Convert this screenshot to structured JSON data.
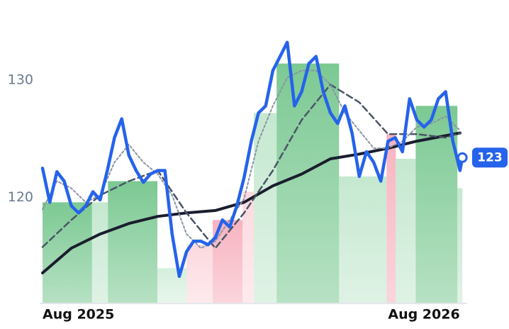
{
  "chart_data": {
    "type": "line",
    "xticks": [
      {
        "value": 0,
        "label": "Aug 2025"
      },
      {
        "value": 12,
        "label": "Aug 2026"
      }
    ],
    "xlim": [
      0,
      14.65
    ],
    "ylim": [
      111,
      136.8
    ],
    "yticks": [
      120,
      130
    ],
    "bands": {
      "edges": [
        0,
        1.72,
        2.27,
        3.99,
        5.0,
        5.91,
        6.95,
        7.34,
        8.13,
        10.3,
        11.95,
        12.27,
        12.96,
        14.41,
        14.58
      ],
      "values": [
        119.6,
        119.6,
        121.4,
        114.0,
        116.0,
        118.1,
        120.5,
        127.2,
        131.4,
        121.8,
        125.4,
        123.3,
        127.8,
        120.8
      ],
      "colors": [
        "#7cc993",
        "#c5e8d0",
        "#7cc993",
        "#d5efdd",
        "#fcd9df",
        "#f7b3c0",
        "#fcd9df",
        "#c5e8d0",
        "#7cc993",
        "#c5e8d0",
        "#f7b3c0",
        "#c5e8d0",
        "#7cc993",
        "#c5e8d0"
      ]
    },
    "series": [
      {
        "color": "#1a1d2e",
        "style": "solid",
        "width": 4,
        "x": [
          0,
          1,
          2,
          3,
          4,
          5,
          6,
          7,
          8,
          9,
          10,
          11,
          12,
          13,
          14.5
        ],
        "values": [
          113.6,
          115.7,
          116.9,
          117.8,
          118.4,
          118.7,
          118.9,
          119.6,
          121.0,
          122.0,
          123.3,
          123.7,
          124.2,
          124.8,
          125.5
        ]
      },
      {
        "color": "#4b5567",
        "style": "dashed",
        "width": 2.5,
        "x": [
          0,
          1,
          2,
          3,
          4,
          5,
          6,
          7,
          8,
          9,
          10,
          11,
          12,
          13,
          14,
          14.5
        ],
        "values": [
          115.8,
          118.1,
          120.2,
          121.4,
          122.3,
          118.7,
          115.7,
          118.7,
          122.3,
          126.6,
          129.6,
          128.1,
          125.4,
          125.4,
          125.1,
          125.5
        ]
      },
      {
        "color": "#8a94a6",
        "style": "dotted",
        "width": 2,
        "x": [
          0,
          0.5,
          1,
          1.5,
          2,
          2.5,
          3,
          3.5,
          4,
          4.5,
          5,
          5.5,
          6,
          6.5,
          7,
          7.5,
          8,
          8.5,
          9,
          9.5,
          10,
          10.5,
          11,
          11.5,
          12,
          12.5,
          13,
          13.5,
          14,
          14.5
        ],
        "values": [
          119.0,
          121.4,
          120.8,
          119.6,
          120.2,
          123.0,
          124.5,
          123.0,
          122.0,
          120.2,
          116.9,
          115.7,
          116.3,
          118.1,
          119.9,
          124.8,
          127.8,
          130.2,
          130.8,
          130.8,
          129.6,
          127.2,
          125.7,
          124.2,
          124.2,
          124.8,
          126.0,
          126.3,
          126.9,
          125.7
        ]
      },
      {
        "color": "#2563eb",
        "style": "solid",
        "width": 4.5,
        "x": [
          0,
          0.25,
          0.5,
          0.75,
          1,
          1.25,
          1.5,
          1.75,
          2,
          2.25,
          2.5,
          2.75,
          3,
          3.25,
          3.5,
          3.75,
          4,
          4.25,
          4.5,
          4.75,
          5,
          5.25,
          5.5,
          5.75,
          6,
          6.25,
          6.5,
          6.75,
          7,
          7.25,
          7.5,
          7.75,
          8,
          8.25,
          8.5,
          8.75,
          9,
          9.25,
          9.5,
          9.75,
          10,
          10.25,
          10.5,
          10.75,
          11,
          11.25,
          11.5,
          11.75,
          12,
          12.25,
          12.5,
          12.75,
          13,
          13.25,
          13.5,
          13.75,
          14,
          14.25,
          14.5,
          14.58
        ],
        "values": [
          122.5,
          119.6,
          122.2,
          121.4,
          119.3,
          118.7,
          119.3,
          120.5,
          119.8,
          122.3,
          125.1,
          126.7,
          123.6,
          122.3,
          121.3,
          122.0,
          122.3,
          122.3,
          116.9,
          113.3,
          115.4,
          116.3,
          116.3,
          116.0,
          116.6,
          118.1,
          117.5,
          119.3,
          121.7,
          124.8,
          127.2,
          127.8,
          130.8,
          132.0,
          133.2,
          127.8,
          129.0,
          131.4,
          132.0,
          129.0,
          127.2,
          126.3,
          127.8,
          125.5,
          121.8,
          123.9,
          123.0,
          121.4,
          124.8,
          125.1,
          123.9,
          128.4,
          126.6,
          126.0,
          126.6,
          128.4,
          129.0,
          124.8,
          122.3,
          123.4
        ]
      }
    ],
    "last_value": {
      "value": 123.4,
      "label": "123"
    }
  }
}
